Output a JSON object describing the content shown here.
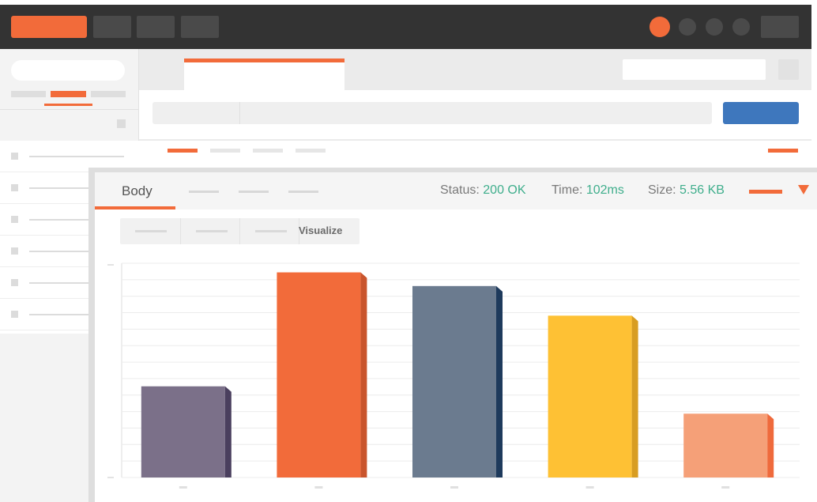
{
  "response": {
    "tab_body": "Body",
    "status_label": "Status:",
    "status_value": "200 OK",
    "time_label": "Time:",
    "time_value": "102ms",
    "size_label": "Size:",
    "size_value": "5.56 KB",
    "active_view": "Visualize"
  },
  "colors": {
    "accent": "#f26b3a",
    "send_button": "#3e77bd",
    "status_value": "#3fae8c"
  },
  "icons": {
    "dropdown": "caret-down-icon"
  },
  "chart_data": {
    "type": "bar",
    "categories": [
      "",
      "",
      "",
      "",
      ""
    ],
    "values": [
      2.0,
      4.5,
      4.2,
      3.55,
      1.4
    ],
    "colors": [
      "#7b7089",
      "#f26b3a",
      "#6b7b8f",
      "#fec134",
      "#f5a078"
    ],
    "side_colors": [
      "#4a3f5e",
      "#c9552d",
      "#1e3a5c",
      "#d89d22",
      "#ef6a3c"
    ],
    "ylim": [
      0,
      4.7
    ],
    "grid": true,
    "legend": "none",
    "title": "",
    "xlabel": "",
    "ylabel": ""
  }
}
